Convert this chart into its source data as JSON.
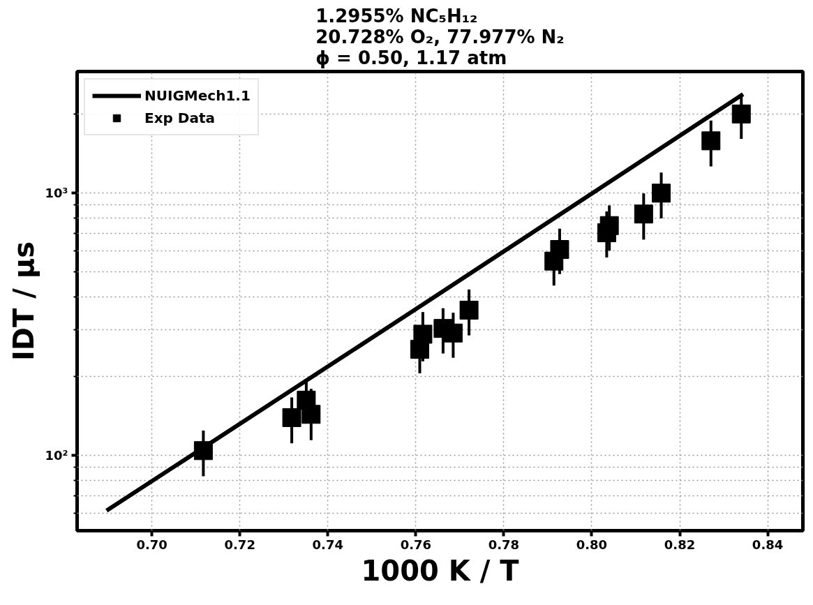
{
  "chart_data": {
    "type": "scatter",
    "title": "1.2955% NC₅H₁₂\n20.728% O₂, 77.977% N₂\nϕ = 0.50, 1.17 atm",
    "xlabel": "1000 K / T",
    "ylabel": "IDT / μs",
    "log": "y",
    "xlim": [
      0.683,
      0.848
    ],
    "ylim": [
      51.5,
      2900
    ],
    "xticks": [
      {
        "value": 0.7,
        "label": "0.70"
      },
      {
        "value": 0.72,
        "label": "0.72"
      },
      {
        "value": 0.74,
        "label": "0.74"
      },
      {
        "value": 0.76,
        "label": "0.76"
      },
      {
        "value": 0.78,
        "label": "0.78"
      },
      {
        "value": 0.8,
        "label": "0.80"
      },
      {
        "value": 0.82,
        "label": "0.82"
      },
      {
        "value": 0.84,
        "label": "0.84"
      }
    ],
    "yticks": [
      {
        "value": 60,
        "label": null
      },
      {
        "value": 70,
        "label": null
      },
      {
        "value": 80,
        "label": null
      },
      {
        "value": 90,
        "label": null
      },
      {
        "value": 100,
        "label": "10²"
      },
      {
        "value": 200,
        "label": null
      },
      {
        "value": 300,
        "label": null
      },
      {
        "value": 400,
        "label": null
      },
      {
        "value": 500,
        "label": null
      },
      {
        "value": 600,
        "label": null
      },
      {
        "value": 700,
        "label": null
      },
      {
        "value": 800,
        "label": null
      },
      {
        "value": 900,
        "label": null
      },
      {
        "value": 1000,
        "label": "10³"
      },
      {
        "value": 2000,
        "label": null
      }
    ],
    "grid": true,
    "legend": "top left",
    "series": [
      {
        "name": "NUIGMech1.1",
        "type": "line",
        "color": "#000000",
        "line_style": "solid",
        "x": [
          0.6897,
          0.76,
          0.8344
        ],
        "values": [
          61.4,
          360,
          2377
        ]
      },
      {
        "name": "Exp Data",
        "marker": "square",
        "color": "#000000",
        "x": [
          0.7117,
          0.7318,
          0.7351,
          0.7362,
          0.7609,
          0.7616,
          0.7662,
          0.7685,
          0.7721,
          0.7914,
          0.7927,
          0.8034,
          0.804,
          0.8118,
          0.8158,
          0.8271,
          0.834
        ],
        "values": [
          104,
          139,
          162,
          143,
          253,
          289,
          304,
          292,
          357,
          549,
          608,
          704,
          750,
          830,
          997,
          1578,
          1998
        ],
        "errors": [
          [
            83,
            124
          ],
          [
            111,
            166
          ],
          [
            132,
            191
          ],
          [
            114,
            179
          ],
          [
            205,
            312
          ],
          [
            228,
            351
          ],
          [
            244,
            363
          ],
          [
            235,
            349
          ],
          [
            286,
            428
          ],
          [
            443,
            655
          ],
          [
            490,
            730
          ],
          [
            567,
            849
          ],
          [
            602,
            895
          ],
          [
            663,
            995
          ],
          [
            799,
            1194
          ],
          [
            1261,
            1886
          ],
          [
            1605,
            2334
          ]
        ]
      }
    ]
  }
}
